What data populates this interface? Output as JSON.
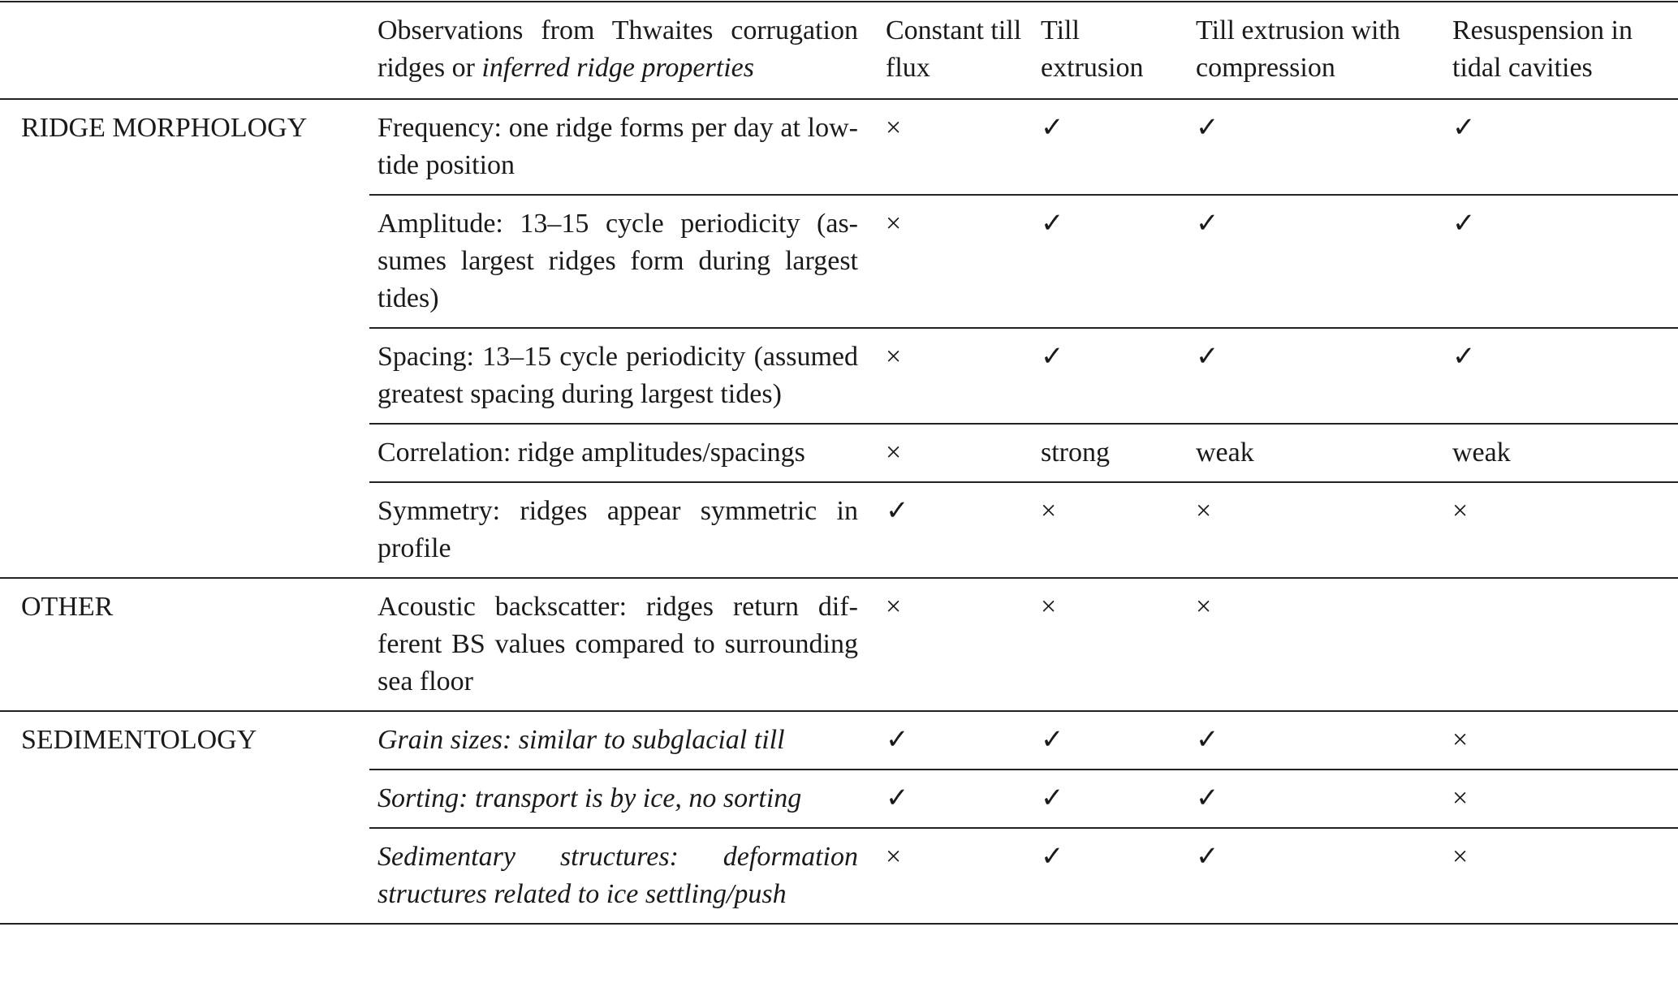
{
  "table": {
    "header": {
      "observation": {
        "text": "Observations from Thwaites corrugation ridges or",
        "italic_text": "inferred ridge properties"
      },
      "columns": [
        "Constant till flux",
        "Till extrusion",
        "Till extrusion with compression",
        "Resuspension in tidal cavities"
      ]
    },
    "sections": [
      {
        "label": "RIDGE MORPHOLOGY",
        "rows": [
          {
            "observation": "Frequency: one ridge forms per day at low-tide position",
            "italic": false,
            "cells": [
              "×",
              "✓",
              "✓",
              "✓"
            ]
          },
          {
            "observation": "Amplitude: 13–15 cycle periodicity (as­sumes largest ridges form during largest tides)",
            "italic": false,
            "cells": [
              "×",
              "✓",
              "✓",
              "✓"
            ]
          },
          {
            "observation": "Spacing: 13–15 cycle periodicity (as­sumed greatest spacing during largest tides)",
            "italic": false,
            "cells": [
              "×",
              "✓",
              "✓",
              "✓"
            ]
          },
          {
            "observation": "Correlation: ridge amplitudes/spacings",
            "italic": false,
            "cells": [
              "×",
              "strong",
              "weak",
              "weak"
            ]
          },
          {
            "observation": "Symmetry: ridges appear symmetric in profile",
            "italic": false,
            "cells": [
              "✓",
              "×",
              "×",
              "×"
            ]
          }
        ]
      },
      {
        "label": "OTHER",
        "rows": [
          {
            "observation": "Acoustic backscatter: ridges return dif­ferent BS values compared to surround­ing sea floor",
            "italic": false,
            "cells": [
              "×",
              "×",
              "×",
              null
            ]
          }
        ]
      },
      {
        "label": "SEDIMENTOLOGY",
        "rows": [
          {
            "observation": "Grain sizes: similar to subglacial till",
            "italic": true,
            "cells": [
              "✓",
              "✓",
              "✓",
              "×"
            ]
          },
          {
            "observation": "Sorting: transport is by ice, no sorting",
            "italic": true,
            "cells": [
              "✓",
              "✓",
              "✓",
              "×"
            ]
          },
          {
            "observation": "Sedimentary structures: deformation structures related to ice settling/push",
            "italic": true,
            "cells": [
              "×",
              "✓",
              "✓",
              "×"
            ]
          }
        ]
      }
    ]
  }
}
